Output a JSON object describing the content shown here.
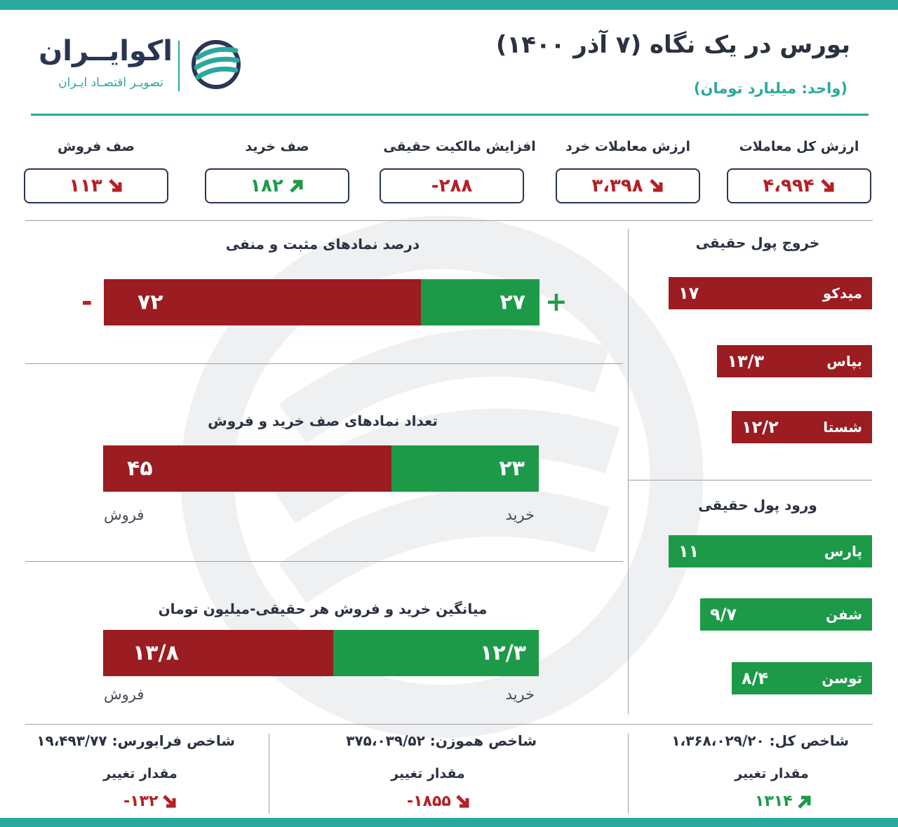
{
  "header": {
    "title": "بورس در یک نگاه (۷ آذر ۱۴۰۰)",
    "unit": "(واحد: میلیارد تومان)",
    "logo_name": "اکوایــران",
    "logo_tagline": "تصویـر اقتصـاد ایـران"
  },
  "stats": [
    {
      "label": "ارزش کل معاملات",
      "value": "۴،۹۹۴",
      "trend": "down"
    },
    {
      "label": "ارزش معاملات خرد",
      "value": "۳،۳۹۸",
      "trend": "down"
    },
    {
      "label": "افزایش مالکیت حقیقی",
      "value": "-۲۸۸",
      "trend": "none"
    },
    {
      "label": "صف خرید",
      "value": "۱۸۲",
      "trend": "up"
    },
    {
      "label": "صف فروش",
      "value": "۱۱۳",
      "trend": "down"
    }
  ],
  "symbols_pct": {
    "title": "درصد نمادهای مثبت و منفی",
    "positive": "۲۷",
    "negative": "۷۲",
    "positive_share": 27,
    "negative_share": 72,
    "plus_sign": "+",
    "minus_sign": "-"
  },
  "queues": {
    "title": "تعداد نمادهای صف خرید و فروش",
    "buy": "۲۳",
    "sell": "۴۵",
    "buy_share": 23,
    "sell_share": 45,
    "buy_label": "خرید",
    "sell_label": "فروش"
  },
  "avg_trade": {
    "title": "میانگین خرید و فروش هر حقیقی-میلیون تومان",
    "buy": "۱۲/۳",
    "sell": "۱۳/۸",
    "buy_share": 12.3,
    "sell_share": 13.8,
    "buy_label": "خرید",
    "sell_label": "فروش"
  },
  "outflow": {
    "title": "خروج پول حقیقی",
    "items": [
      {
        "name": "میدکو",
        "value": "۱۷",
        "amount": 17
      },
      {
        "name": "بپاس",
        "value": "۱۳/۳",
        "amount": 13.3
      },
      {
        "name": "شستا",
        "value": "۱۲/۲",
        "amount": 12.2
      }
    ]
  },
  "inflow": {
    "title": "ورود پول حقیقی",
    "items": [
      {
        "name": "پارس",
        "value": "۱۱",
        "amount": 11
      },
      {
        "name": "شفن",
        "value": "۹/۷",
        "amount": 9.7
      },
      {
        "name": "توسن",
        "value": "۸/۴",
        "amount": 8.4
      }
    ]
  },
  "indices": [
    {
      "label": "شاخص کل: ۱،۳۶۸،۰۲۹/۲۰",
      "change_label": "مقدار تغییر",
      "change": "۱۳۱۴",
      "trend": "up"
    },
    {
      "label": "شاخص هموزن: ۳۷۵،۰۳۹/۵۲",
      "change_label": "مقدار تغییر",
      "change": "-۱۸۵۵",
      "trend": "down"
    },
    {
      "label": "شاخص فرابورس: ۱۹،۴۹۳/۷۷",
      "change_label": "مقدار تغییر",
      "change": "-۱۳۲",
      "trend": "down"
    }
  ],
  "colors": {
    "teal": "#2aa89e",
    "red": "#9b1c21",
    "green": "#1c9a48",
    "navy": "#2a3553"
  }
}
